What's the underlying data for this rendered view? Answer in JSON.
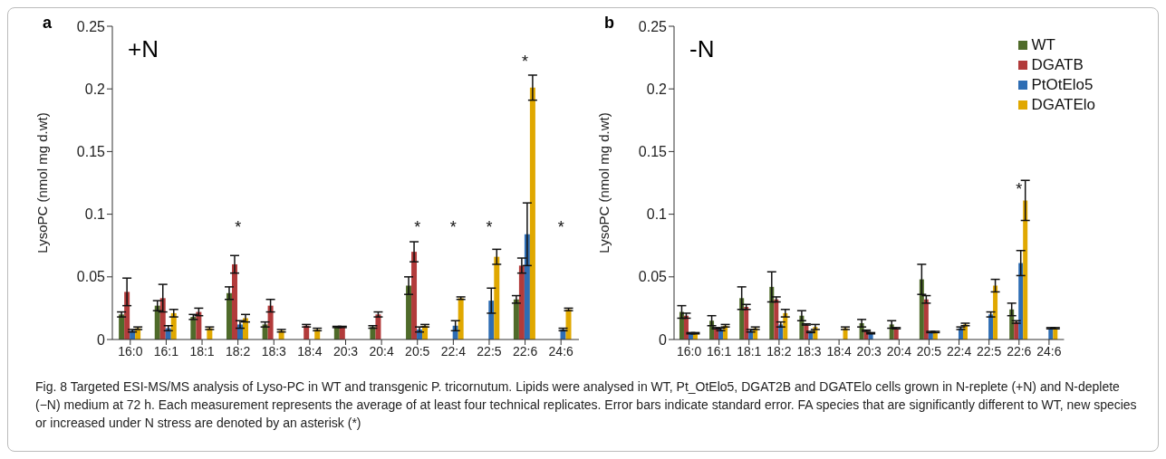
{
  "chart_data": [
    {
      "type": "bar",
      "title": "a",
      "ylabel": "LysoPC (nmol mg d.wt)",
      "categories": [
        "16:0",
        "16:1",
        "18:1",
        "18:2",
        "18:3",
        "18:4",
        "20:3",
        "20:4",
        "20:5",
        "22:4",
        "22:5",
        "22:6",
        "24:6"
      ],
      "ylim": [
        0,
        0.25
      ],
      "yticks": [
        0,
        0.05,
        0.1,
        0.15,
        0.2,
        0.25
      ],
      "grid": false,
      "legend": false,
      "series": [
        {
          "color": "#4f6b2a",
          "values": [
            0.02,
            0.027,
            0.018,
            0.037,
            0.012,
            null,
            0.01,
            0.01,
            0.043,
            null,
            null,
            0.032,
            null
          ],
          "errors": [
            0.002,
            0.004,
            0.002,
            0.005,
            0.002,
            null,
            0.0005,
            0.001,
            0.007,
            null,
            null,
            0.003,
            null
          ]
        },
        {
          "color": "#b23b3b",
          "values": [
            0.038,
            0.033,
            0.022,
            0.06,
            0.027,
            0.011,
            0.01,
            0.02,
            0.07,
            null,
            null,
            0.059,
            null
          ],
          "errors": [
            0.011,
            0.011,
            0.003,
            0.007,
            0.005,
            0.001,
            0.0005,
            0.002,
            0.008,
            null,
            null,
            0.006,
            null
          ]
        },
        {
          "color": "#2e6db4",
          "values": [
            0.007,
            0.009,
            null,
            0.012,
            null,
            null,
            null,
            null,
            0.008,
            0.011,
            0.031,
            0.084,
            0.008
          ],
          "errors": [
            0.001,
            0.002,
            null,
            0.003,
            null,
            null,
            null,
            null,
            0.002,
            0.004,
            0.01,
            0.025,
            0.001
          ]
        },
        {
          "color": "#e0a800",
          "values": [
            0.009,
            0.021,
            0.009,
            0.017,
            0.007,
            0.008,
            null,
            null,
            0.011,
            0.033,
            0.066,
            0.201,
            0.024
          ],
          "errors": [
            0.001,
            0.003,
            0.001,
            0.003,
            0.001,
            0.001,
            null,
            null,
            0.001,
            0.001,
            0.006,
            0.01,
            0.001
          ]
        }
      ],
      "annotations": [
        "+N",
        "Fig. 8 Targeted ESI-MS/MS analysis of Lyso-PC in WT and transgenic P. tricornutum. Lipids were analysed in WT, Pt_OtElo5, DGAT2B and DGATElo cells grown in N-replete (+N) and N-deplete (−N) medium at 72 h. Each measurement represents the average of at least four technical replicates. Error bars indicate standard error. FA species that are significantly different to WT, new species or increased under N stress are denoted by an asterisk (*)",
        "*",
        "*",
        "*",
        "*",
        "*",
        "*"
      ]
    },
    {
      "type": "bar",
      "title": "b",
      "ylabel": "LysoPC (nmol mg d.wt)",
      "categories": [
        "16:0",
        "16:1",
        "18:1",
        "18:2",
        "18:3",
        "18:4",
        "20:3",
        "20:4",
        "20:5",
        "22:4",
        "22:5",
        "22:6",
        "24:6"
      ],
      "ylim": [
        0,
        0.25
      ],
      "yticks": [
        0,
        0.05,
        0.1,
        0.15,
        0.2,
        0.25
      ],
      "grid": false,
      "legend": "top right",
      "series": [
        {
          "name": "WT",
          "color": "#4f6b2a",
          "values": [
            0.022,
            0.015,
            0.033,
            0.042,
            0.019,
            null,
            0.013,
            0.012,
            0.048,
            null,
            null,
            0.024,
            null
          ],
          "errors": [
            0.005,
            0.004,
            0.009,
            0.012,
            0.004,
            null,
            0.003,
            0.003,
            0.012,
            null,
            null,
            0.005,
            null
          ]
        },
        {
          "name": "DGATB",
          "color": "#b23b3b",
          "values": [
            0.019,
            0.009,
            0.026,
            0.032,
            0.012,
            null,
            0.007,
            0.009,
            0.032,
            null,
            null,
            0.014,
            null
          ],
          "errors": [
            0.002,
            0.0005,
            0.002,
            0.002,
            0.0005,
            null,
            0.0005,
            0.0005,
            0.003,
            null,
            null,
            0.001,
            null
          ]
        },
        {
          "name": "PtOtElo5",
          "color": "#2e6db4",
          "values": [
            0.005,
            0.008,
            0.007,
            0.012,
            0.006,
            null,
            0.005,
            null,
            0.006,
            0.009,
            0.02,
            0.061,
            0.009
          ],
          "errors": [
            0.0005,
            0.001,
            0.001,
            0.002,
            0.0005,
            null,
            0.0005,
            null,
            0.0005,
            0.001,
            0.002,
            0.01,
            0.0005
          ]
        },
        {
          "name": "DGATElo",
          "color": "#e0a800",
          "values": [
            0.005,
            0.011,
            0.009,
            0.021,
            0.01,
            0.009,
            null,
            null,
            0.006,
            0.012,
            0.043,
            0.111,
            0.009
          ],
          "errors": [
            0.0005,
            0.001,
            0.001,
            0.003,
            0.002,
            0.001,
            null,
            null,
            0.0005,
            0.001,
            0.005,
            0.016,
            0.0005
          ]
        }
      ],
      "annotations": [
        "-N",
        "*"
      ]
    }
  ]
}
